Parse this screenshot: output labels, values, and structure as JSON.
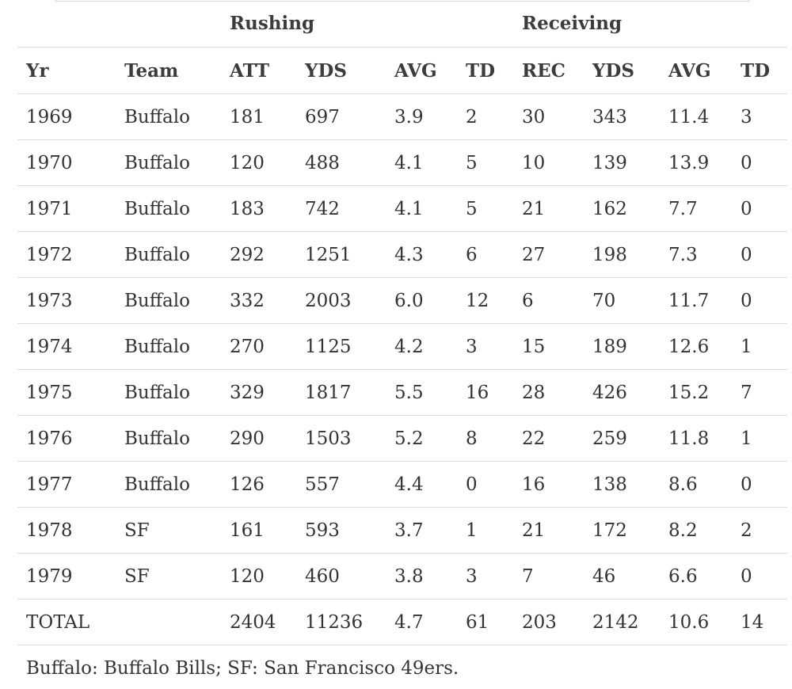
{
  "groups": {
    "rushing": "Rushing",
    "receiving": "Receiving"
  },
  "columns": [
    "Yr",
    "Team",
    "ATT",
    "YDS",
    "AVG",
    "TD",
    "REC",
    "YDS",
    "AVG",
    "TD"
  ],
  "rows": [
    [
      "1969",
      "Buffalo",
      "181",
      "697",
      "3.9",
      "2",
      "30",
      "343",
      "11.4",
      "3"
    ],
    [
      "1970",
      "Buffalo",
      "120",
      "488",
      "4.1",
      "5",
      "10",
      "139",
      "13.9",
      "0"
    ],
    [
      "1971",
      "Buffalo",
      "183",
      "742",
      "4.1",
      "5",
      "21",
      "162",
      "7.7",
      "0"
    ],
    [
      "1972",
      "Buffalo",
      "292",
      "1251",
      "4.3",
      "6",
      "27",
      "198",
      "7.3",
      "0"
    ],
    [
      "1973",
      "Buffalo",
      "332",
      "2003",
      "6.0",
      "12",
      "6",
      "70",
      "11.7",
      "0"
    ],
    [
      "1974",
      "Buffalo",
      "270",
      "1125",
      "4.2",
      "3",
      "15",
      "189",
      "12.6",
      "1"
    ],
    [
      "1975",
      "Buffalo",
      "329",
      "1817",
      "5.5",
      "16",
      "28",
      "426",
      "15.2",
      "7"
    ],
    [
      "1976",
      "Buffalo",
      "290",
      "1503",
      "5.2",
      "8",
      "22",
      "259",
      "11.8",
      "1"
    ],
    [
      "1977",
      "Buffalo",
      "126",
      "557",
      "4.4",
      "0",
      "16",
      "138",
      "8.6",
      "0"
    ],
    [
      "1978",
      "SF",
      "161",
      "593",
      "3.7",
      "1",
      "21",
      "172",
      "8.2",
      "2"
    ],
    [
      "1979",
      "SF",
      "120",
      "460",
      "3.8",
      "3",
      "7",
      "46",
      "6.6",
      "0"
    ]
  ],
  "total": [
    "TOTAL",
    "",
    "2404",
    "11236",
    "4.7",
    "61",
    "203",
    "2142",
    "10.6",
    "14"
  ],
  "footnote": "Buffalo: Buffalo Bills; SF: San Francisco 49ers."
}
